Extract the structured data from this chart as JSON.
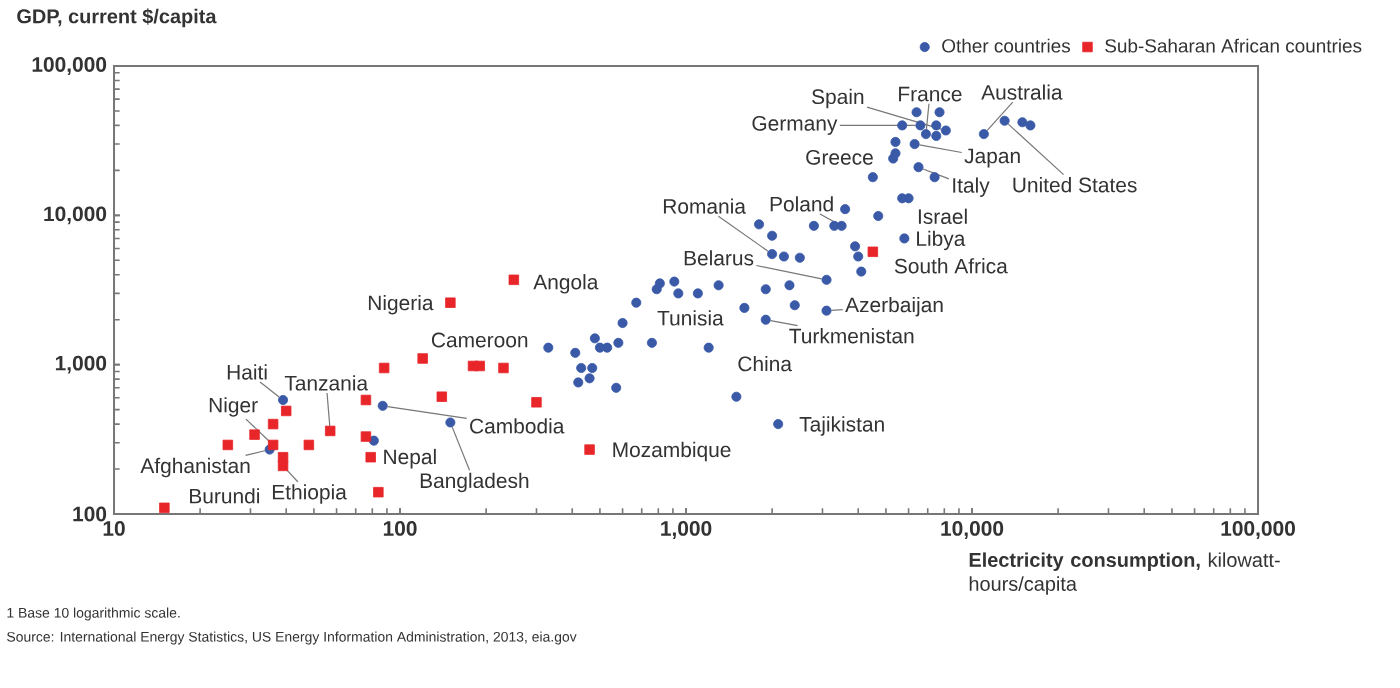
{
  "chart_data": {
    "type": "scatter",
    "ylabel": "GDP, current $/capita",
    "xlabel": "**Electricity consumption,** kilowatt-hours/capita",
    "log": "xy",
    "legend": "top right",
    "xlim": [
      10,
      100000
    ],
    "ylim": [
      100,
      100000
    ],
    "xticks": [
      10,
      100,
      {
        "value": 1000,
        "label": "1,000"
      },
      {
        "value": 10000,
        "label": "10,000"
      },
      {
        "value": 100000,
        "label": "100,000"
      }
    ],
    "yticks": [
      100,
      {
        "value": 1000,
        "label": "1,000"
      },
      {
        "value": 10000,
        "label": "10,000"
      },
      {
        "value": 100000,
        "label": "100,000"
      }
    ],
    "series": [
      {
        "name": "Other countries",
        "color": "#3a5aa8",
        "marker": "circle",
        "x": [
          39,
          35,
          87,
          81,
          150,
          330,
          410,
          430,
          470,
          420,
          460,
          480,
          500,
          530,
          580,
          600,
          570,
          760,
          1200,
          670,
          790,
          810,
          910,
          940,
          1100,
          1300,
          1600,
          1900,
          1900,
          2300,
          2400,
          3100,
          3100,
          2000,
          2200,
          2500,
          1800,
          2000,
          2800,
          3300,
          3500,
          3600,
          4700,
          5800,
          3900,
          4000,
          4100,
          4500,
          5300,
          5400,
          5700,
          6000,
          6500,
          7400,
          5400,
          5700,
          6300,
          6400,
          6600,
          6900,
          7500,
          7500,
          7700,
          8100,
          11000,
          13000,
          15000,
          16000,
          1500,
          2100
        ],
        "values": [
          580,
          270,
          530,
          310,
          410,
          1300,
          1200,
          950,
          950,
          760,
          810,
          1500,
          1300,
          1300,
          1400,
          1900,
          700,
          1400,
          1300,
          2600,
          3200,
          3500,
          3600,
          3000,
          3000,
          3400,
          2400,
          2000,
          3200,
          3400,
          2500,
          2300,
          3700,
          5500,
          5300,
          5200,
          8700,
          7300,
          8500,
          8500,
          8500,
          11000,
          9900,
          7000,
          6200,
          5300,
          4200,
          18000,
          24000,
          26000,
          13000,
          13000,
          21000,
          18000,
          31000,
          40000,
          30000,
          49000,
          40000,
          35000,
          40000,
          34000,
          49000,
          37000,
          35000,
          43000,
          42000,
          40000,
          610,
          400
        ]
      },
      {
        "name": "Sub-Saharan African countries",
        "color": "#e8262a",
        "marker": "square",
        "x": [
          15,
          25,
          31,
          36,
          36,
          40,
          39,
          39,
          48,
          57,
          76,
          76,
          79,
          84,
          88,
          120,
          140,
          180,
          190,
          300,
          460,
          230,
          150,
          250,
          4500
        ],
        "values": [
          110,
          290,
          340,
          400,
          290,
          490,
          240,
          210,
          290,
          360,
          580,
          330,
          240,
          140,
          950,
          1100,
          610,
          980,
          980,
          560,
          270,
          950,
          2600,
          3700,
          5700
        ]
      }
    ],
    "annotations": [
      {
        "text": "Spain",
        "x": 8100,
        "y": 37000
      },
      {
        "text": "France",
        "x": 6900,
        "y": 35000
      },
      {
        "text": "Australia",
        "x": 11000,
        "y": 35000
      },
      {
        "text": "Germany",
        "x": 6600,
        "y": 40000
      },
      {
        "text": "Greece",
        "x": 5400,
        "y": 26000
      },
      {
        "text": "Japan",
        "x": 6300,
        "y": 30000
      },
      {
        "text": "Italy",
        "x": 6500,
        "y": 21000
      },
      {
        "text": "United States",
        "x": 13000,
        "y": 43000
      },
      {
        "text": "Israel",
        "x": 6000,
        "y": 13000
      },
      {
        "text": "Romania",
        "x": 2000,
        "y": 5500
      },
      {
        "text": "Poland",
        "x": 3500,
        "y": 8500
      },
      {
        "text": "Libya",
        "x": 5800,
        "y": 7000
      },
      {
        "text": "Belarus",
        "x": 3100,
        "y": 3700
      },
      {
        "text": "South Africa",
        "x": 4500,
        "y": 5700
      },
      {
        "text": "Azerbaijan",
        "x": 3100,
        "y": 2300
      },
      {
        "text": "Tunisia",
        "x": 1600,
        "y": 2400
      },
      {
        "text": "Turkmenistan",
        "x": 1900,
        "y": 2000
      },
      {
        "text": "China",
        "x": 1200,
        "y": 1300
      },
      {
        "text": "Tajikistan",
        "x": 2100,
        "y": 400
      },
      {
        "text": "Mozambique",
        "x": 460,
        "y": 270
      },
      {
        "text": "Cambodia",
        "x": 87,
        "y": 530
      },
      {
        "text": "Bangladesh",
        "x": 150,
        "y": 410
      },
      {
        "text": "Nepal",
        "x": 81,
        "y": 310
      },
      {
        "text": "Cameroon",
        "x": 190,
        "y": 980
      },
      {
        "text": "Angola",
        "x": 250,
        "y": 3700
      },
      {
        "text": "Nigeria",
        "x": 150,
        "y": 2600
      },
      {
        "text": "Tanzania",
        "x": 57,
        "y": 360
      },
      {
        "text": "Haiti",
        "x": 39,
        "y": 580
      },
      {
        "text": "Niger",
        "x": 36,
        "y": 290
      },
      {
        "text": "Afghanistan",
        "x": 35,
        "y": 270
      },
      {
        "text": "Ethiopia",
        "x": 39,
        "y": 210
      },
      {
        "text": "Burundi",
        "x": 15,
        "y": 110
      },
      "1 Base 10 logarithmic scale.",
      "Source: International Energy Statistics, US Energy Information Administration, 2013, eia.gov"
    ]
  }
}
